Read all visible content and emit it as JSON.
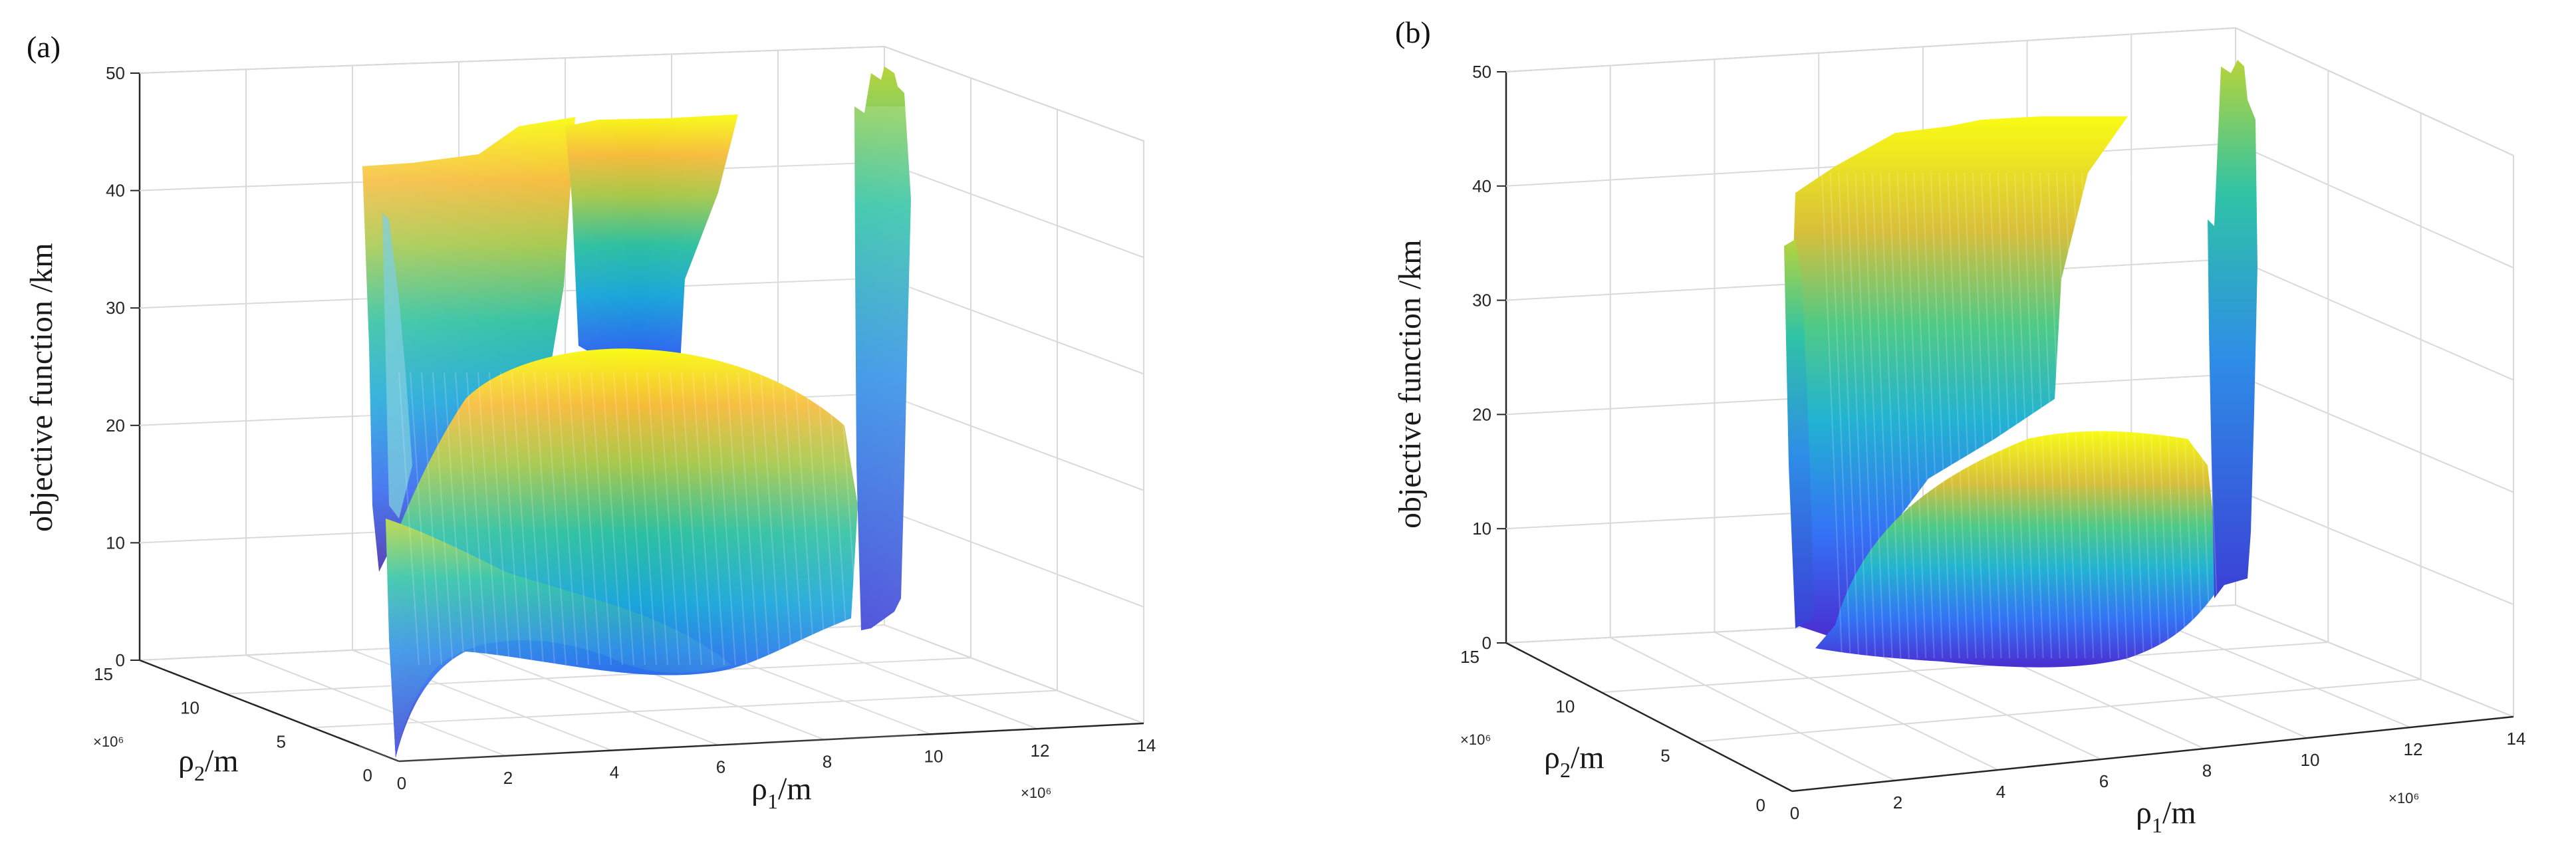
{
  "figure": {
    "panels": [
      "(a)",
      "(b)"
    ]
  },
  "chart_data": [
    {
      "type": "surface3d",
      "panel_label": "(a)",
      "zlabel": "objective function /km",
      "xlabel_base": "ρ",
      "xlabel_sub": "1",
      "xlabel_unit": "/m",
      "ylabel_base": "ρ",
      "ylabel_sub": "2",
      "ylabel_unit": "/m",
      "x_ticks": [
        "0",
        "2",
        "4",
        "6",
        "8",
        "10",
        "12",
        "14"
      ],
      "y_ticks": [
        "0",
        "5",
        "10",
        "15"
      ],
      "z_ticks": [
        "0",
        "10",
        "20",
        "30",
        "40",
        "50"
      ],
      "x_multiplier": "×10⁶",
      "y_multiplier": "×10⁶",
      "xlim": [
        0,
        14000000
      ],
      "ylim": [
        0,
        15000000
      ],
      "zlim": [
        0,
        50
      ],
      "colormap": "parula"
    },
    {
      "type": "surface3d",
      "panel_label": "(b)",
      "zlabel": "objective function /km",
      "xlabel_base": "ρ",
      "xlabel_sub": "1",
      "xlabel_unit": "/m",
      "ylabel_base": "ρ",
      "ylabel_sub": "2",
      "ylabel_unit": "/m",
      "x_ticks": [
        "0",
        "2",
        "4",
        "6",
        "8",
        "10",
        "12",
        "14"
      ],
      "y_ticks": [
        "0",
        "5",
        "10",
        "15"
      ],
      "z_ticks": [
        "0",
        "10",
        "20",
        "30",
        "40",
        "50"
      ],
      "x_multiplier": "×10⁶",
      "y_multiplier": "×10⁶",
      "xlim": [
        0,
        14000000
      ],
      "ylim": [
        0,
        15000000
      ],
      "zlim": [
        0,
        50
      ],
      "colormap": "parula"
    }
  ]
}
